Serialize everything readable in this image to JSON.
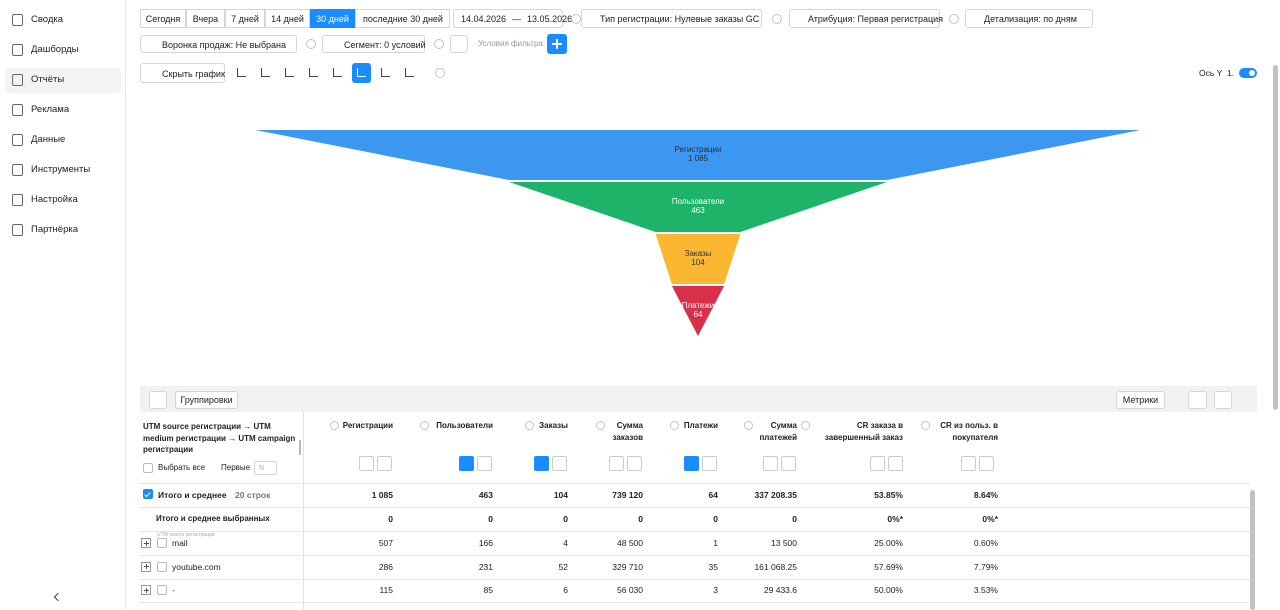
{
  "sidebar": {
    "items": [
      "Сводка",
      "Дашборды",
      "Отчёты",
      "Реклама",
      "Данные",
      "Инструменты",
      "Настройка",
      "Партнёрка"
    ]
  },
  "toolbar": {
    "periods": [
      "Сегодня",
      "Вчера",
      "7 дней",
      "14 дней",
      "30 дней"
    ],
    "period_select": "последние 30 дней",
    "date_from": "14.04.2026",
    "date_sep": "—",
    "date_to": "13.05.2026",
    "reg_type": "Тип регистрации: Нулевые заказы GC",
    "attribution": "Атрибуция: Первая регистрация",
    "detail": "Детализация:  по дням",
    "funnel": "Воронка продаж: Не выбрана",
    "segment": "Сегмент: 0 условий",
    "filter_label": "Условия фильтра:",
    "hide_chart": "Скрыть график",
    "axis_y": "Ось Y",
    "axis_y_value": "1."
  },
  "chart_data": {
    "type": "funnel",
    "categories": [
      "Регистрации",
      "Пользователи",
      "Заказы",
      "Платежи"
    ],
    "values": [
      1085,
      463,
      104,
      64
    ],
    "value_labels": [
      "1 085",
      "463",
      "104",
      "64"
    ],
    "colors": [
      "#3c97f0",
      "#1db46a",
      "#fbb731",
      "#d9304a"
    ]
  },
  "table": {
    "grouping": "Группировки",
    "metrics": "Метрики",
    "group_header": "UTM source регистрации → UTM medium регистрации → UTM campaign регистрации",
    "select_all": "Выбрать все",
    "first": "Первые",
    "first_placeholder": "N",
    "columns": [
      "Регистрации",
      "Пользователи",
      "Заказы",
      "Сумма заказов",
      "Платежи",
      "Сумма платежей",
      "CR заказа в завершенный заказ",
      "CR из польз. в покупателя"
    ],
    "total": {
      "label": "Итого и среднее",
      "count": "20 строк",
      "cells": [
        "1 085",
        "463",
        "104",
        "739 120",
        "64",
        "337 208.35",
        "53.85%",
        "8.64%"
      ]
    },
    "selected": {
      "label": "Итого и среднее выбранных",
      "cells": [
        "0",
        "0",
        "0",
        "0",
        "0",
        "0",
        "0%*",
        "0%*"
      ]
    },
    "level_hint": "UTM source регистрации",
    "rows": [
      {
        "label": "mail",
        "cells": [
          "507",
          "166",
          "4",
          "48 500",
          "1",
          "13 500",
          "25.00%",
          "0.60%"
        ]
      },
      {
        "label": "youtube.com",
        "cells": [
          "286",
          "231",
          "52",
          "329 710",
          "35",
          "161 068.25",
          "57.69%",
          "7.79%"
        ]
      },
      {
        "label": "-",
        "cells": [
          "115",
          "85",
          "6",
          "56 030",
          "3",
          "29 433.6",
          "50.00%",
          "3.53%"
        ]
      }
    ]
  }
}
